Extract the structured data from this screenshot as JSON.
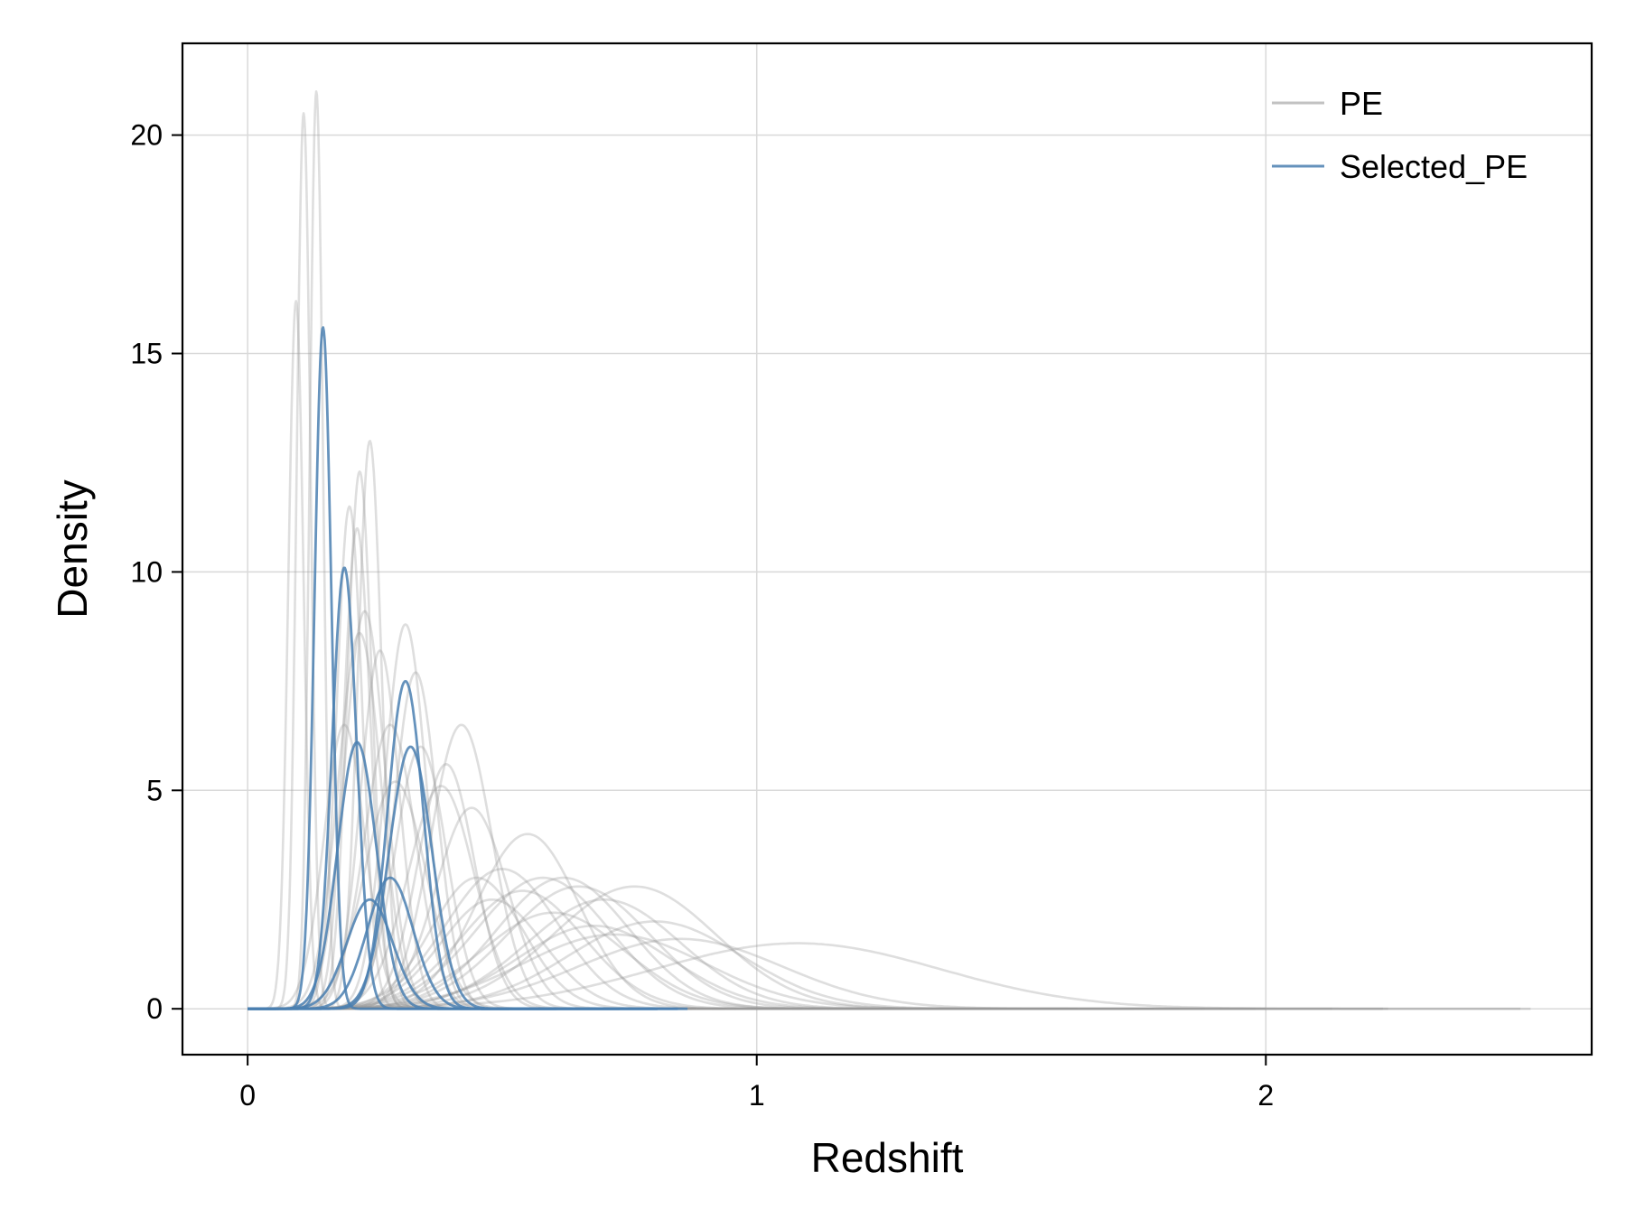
{
  "chart_data": {
    "type": "line",
    "xlabel": "Redshift",
    "ylabel": "Density",
    "xlim": [
      -0.128,
      2.64
    ],
    "ylim": [
      -1.05,
      22.1
    ],
    "xticks": [
      0,
      1,
      2
    ],
    "yticks": [
      0,
      5,
      10,
      15,
      20
    ],
    "grid": true,
    "legend": {
      "position": "top-right",
      "entries": [
        "PE",
        "Selected_PE"
      ]
    },
    "colors": {
      "PE": "#999999",
      "Selected_PE": "#4a7fb0",
      "grid": "#d9d9d9",
      "frame": "#000000"
    },
    "series": [
      {
        "name": "PE",
        "peaks": [
          {
            "mu": 0.11,
            "sigma": 0.0136,
            "amp": 20.5
          },
          {
            "mu": 0.135,
            "sigma": 0.013,
            "amp": 21.0
          },
          {
            "mu": 0.095,
            "sigma": 0.015,
            "amp": 16.2
          },
          {
            "mu": 0.2,
            "sigma": 0.025,
            "amp": 11.5
          },
          {
            "mu": 0.215,
            "sigma": 0.026,
            "amp": 11.0
          },
          {
            "mu": 0.22,
            "sigma": 0.024,
            "amp": 12.3
          },
          {
            "mu": 0.24,
            "sigma": 0.023,
            "amp": 13.0
          },
          {
            "mu": 0.19,
            "sigma": 0.04,
            "amp": 6.5
          },
          {
            "mu": 0.23,
            "sigma": 0.04,
            "amp": 9.1
          },
          {
            "mu": 0.22,
            "sigma": 0.042,
            "amp": 8.6
          },
          {
            "mu": 0.26,
            "sigma": 0.038,
            "amp": 8.2
          },
          {
            "mu": 0.31,
            "sigma": 0.04,
            "amp": 8.8
          },
          {
            "mu": 0.33,
            "sigma": 0.042,
            "amp": 7.7
          },
          {
            "mu": 0.28,
            "sigma": 0.05,
            "amp": 6.5
          },
          {
            "mu": 0.34,
            "sigma": 0.05,
            "amp": 6.0
          },
          {
            "mu": 0.39,
            "sigma": 0.055,
            "amp": 5.6
          },
          {
            "mu": 0.42,
            "sigma": 0.06,
            "amp": 6.5
          },
          {
            "mu": 0.38,
            "sigma": 0.065,
            "amp": 5.1
          },
          {
            "mu": 0.44,
            "sigma": 0.07,
            "amp": 4.6
          },
          {
            "mu": 0.29,
            "sigma": 0.06,
            "amp": 5.2
          },
          {
            "mu": 0.55,
            "sigma": 0.1,
            "amp": 4.0
          },
          {
            "mu": 0.5,
            "sigma": 0.11,
            "amp": 3.2
          },
          {
            "mu": 0.58,
            "sigma": 0.13,
            "amp": 3.0
          },
          {
            "mu": 0.62,
            "sigma": 0.13,
            "amp": 3.0
          },
          {
            "mu": 0.65,
            "sigma": 0.14,
            "amp": 2.8
          },
          {
            "mu": 0.54,
            "sigma": 0.12,
            "amp": 2.7
          },
          {
            "mu": 0.7,
            "sigma": 0.15,
            "amp": 2.5
          },
          {
            "mu": 0.6,
            "sigma": 0.14,
            "amp": 2.2
          },
          {
            "mu": 0.76,
            "sigma": 0.16,
            "amp": 2.8
          },
          {
            "mu": 0.8,
            "sigma": 0.17,
            "amp": 2.0
          },
          {
            "mu": 0.68,
            "sigma": 0.15,
            "amp": 1.9
          },
          {
            "mu": 0.72,
            "sigma": 0.18,
            "amp": 1.7
          },
          {
            "mu": 0.48,
            "sigma": 0.1,
            "amp": 2.5
          },
          {
            "mu": 0.45,
            "sigma": 0.09,
            "amp": 3.0
          },
          {
            "mu": 0.85,
            "sigma": 0.2,
            "amp": 1.6
          },
          {
            "mu": 1.08,
            "sigma": 0.28,
            "amp": 1.5
          }
        ]
      },
      {
        "name": "Selected_PE",
        "peaks": [
          {
            "mu": 0.148,
            "sigma": 0.0165,
            "amp": 15.6
          },
          {
            "mu": 0.19,
            "sigma": 0.024,
            "amp": 10.1
          },
          {
            "mu": 0.215,
            "sigma": 0.038,
            "amp": 6.1
          },
          {
            "mu": 0.31,
            "sigma": 0.035,
            "amp": 7.5
          },
          {
            "mu": 0.32,
            "sigma": 0.042,
            "amp": 6.0
          },
          {
            "mu": 0.28,
            "sigma": 0.045,
            "amp": 3.0
          },
          {
            "mu": 0.24,
            "sigma": 0.045,
            "amp": 2.5
          }
        ]
      }
    ]
  }
}
